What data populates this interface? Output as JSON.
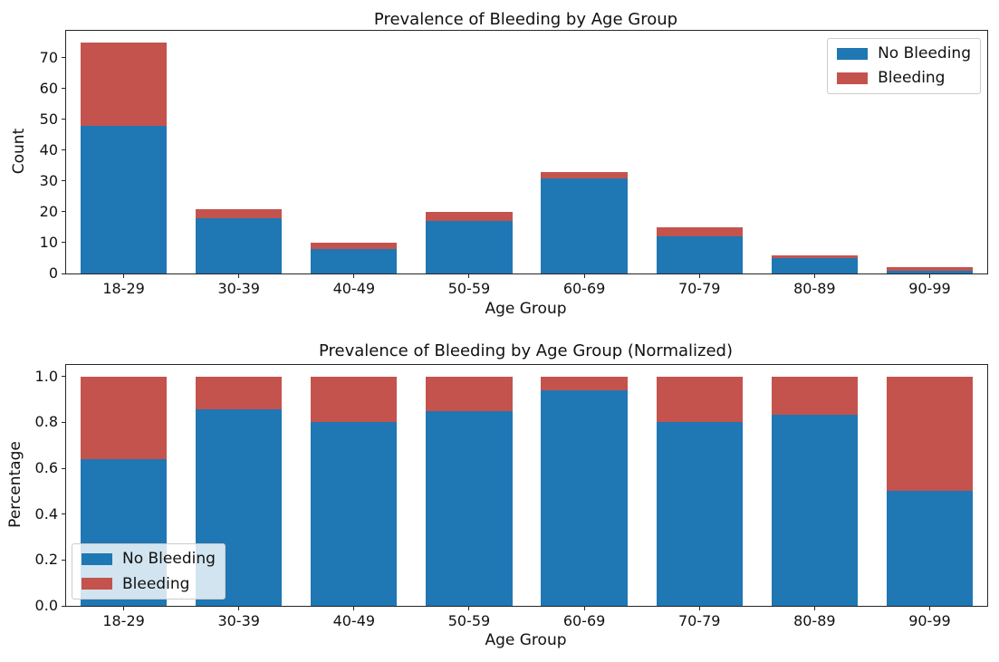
{
  "chart_data": [
    {
      "type": "bar",
      "stacked": true,
      "title": "Prevalence of Bleeding by Age Group",
      "xlabel": "Age Group",
      "ylabel": "Count",
      "categories": [
        "18-29",
        "30-39",
        "40-49",
        "50-59",
        "60-69",
        "70-79",
        "80-89",
        "90-99"
      ],
      "series": [
        {
          "name": "No Bleeding",
          "color": "#1f77b4",
          "values": [
            48,
            18,
            8,
            17,
            31,
            12,
            5,
            1
          ]
        },
        {
          "name": "Bleeding",
          "color": "#c4534e",
          "values": [
            27,
            3,
            2,
            3,
            2,
            3,
            1,
            1
          ]
        }
      ],
      "totals": [
        75,
        21,
        10,
        20,
        33,
        15,
        6,
        2
      ],
      "yticks": [
        "0",
        "10",
        "20",
        "30",
        "40",
        "50",
        "60",
        "70"
      ],
      "ylim": [
        0,
        78.75
      ],
      "grid": false,
      "legend_position": "upper-right"
    },
    {
      "type": "bar",
      "stacked": true,
      "title": "Prevalence of Bleeding by Age Group (Normalized)",
      "xlabel": "Age Group",
      "ylabel": "Percentage",
      "categories": [
        "18-29",
        "30-39",
        "40-49",
        "50-59",
        "60-69",
        "70-79",
        "80-89",
        "90-99"
      ],
      "series": [
        {
          "name": "No Bleeding",
          "color": "#1f77b4",
          "values": [
            0.64,
            0.857,
            0.8,
            0.85,
            0.939,
            0.8,
            0.833,
            0.5
          ]
        },
        {
          "name": "Bleeding",
          "color": "#c4534e",
          "values": [
            0.36,
            0.143,
            0.2,
            0.15,
            0.061,
            0.2,
            0.167,
            0.5
          ]
        }
      ],
      "yticks": [
        "0.0",
        "0.2",
        "0.4",
        "0.6",
        "0.8",
        "1.0"
      ],
      "ylim": [
        0,
        1.05
      ],
      "grid": false,
      "legend_position": "lower-left"
    }
  ]
}
